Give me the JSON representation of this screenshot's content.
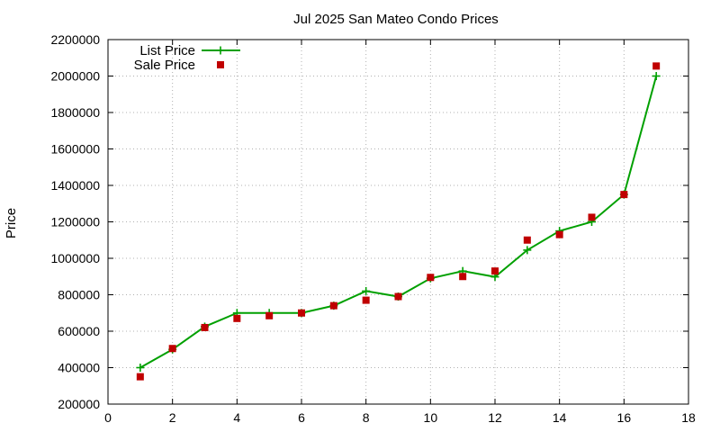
{
  "chart_data": {
    "type": "line",
    "title": "Jul 2025 San Mateo Condo Prices",
    "xlabel": "",
    "ylabel": "Price",
    "xlim": [
      0,
      18
    ],
    "ylim": [
      200000,
      2200000
    ],
    "x_ticks": [
      0,
      2,
      4,
      6,
      8,
      10,
      12,
      14,
      16,
      18
    ],
    "y_ticks": [
      200000,
      400000,
      600000,
      800000,
      1000000,
      1200000,
      1400000,
      1600000,
      1800000,
      2000000,
      2200000
    ],
    "grid": true,
    "legend": "top-left",
    "series": [
      {
        "name": "List Price",
        "style": "line-points",
        "color": "#00a000",
        "marker": "plus",
        "x": [
          1,
          2,
          3,
          4,
          5,
          6,
          7,
          8,
          9,
          10,
          11,
          12,
          13,
          14,
          15,
          16,
          17
        ],
        "y": [
          400000,
          500000,
          625000,
          700000,
          700000,
          700000,
          740000,
          820000,
          790000,
          890000,
          930000,
          898000,
          1045000,
          1150000,
          1200000,
          1350000,
          2000000
        ]
      },
      {
        "name": "Sale Price",
        "style": "points",
        "color": "#c00000",
        "marker": "square",
        "x": [
          1,
          2,
          3,
          4,
          5,
          6,
          7,
          8,
          9,
          10,
          11,
          12,
          13,
          14,
          15,
          16,
          17
        ],
        "y": [
          350000,
          505000,
          620000,
          670000,
          685000,
          700000,
          740000,
          770000,
          790000,
          895000,
          900000,
          930000,
          1100000,
          1130000,
          1225000,
          1350000,
          2055000
        ]
      }
    ]
  }
}
